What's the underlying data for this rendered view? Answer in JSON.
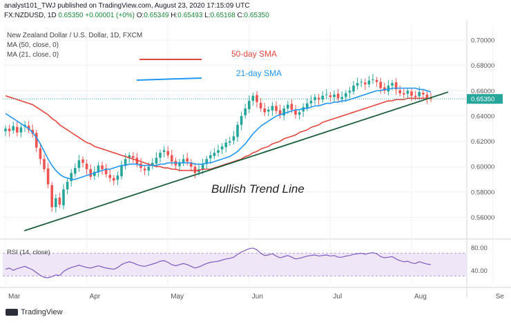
{
  "header": {
    "published": "analyst101_TWJ published on TradingView.com, August 23, 2020 17:15:09 UTC",
    "symbol": "FX:NZDUSD, 1D",
    "last_close": "0.65350",
    "change": "+0.00001 (+0%)",
    "o_label": "O:",
    "o_val": "0.65349",
    "h_label": "H:",
    "h_val": "0.65493",
    "l_label": "L:",
    "l_val": "0.65168",
    "c_label": "C:",
    "c_val": "0.65350"
  },
  "legend": {
    "title": "New Zealand Dollar / U.S. Dollar, 1D, FXCM",
    "ma50": "MA (50, close, 0)",
    "ma21": "MA (21, close, 0)"
  },
  "annotations": {
    "sma50_label": "50-day SMA",
    "sma21_label": "21-day SMA",
    "trend_label": "Bullish Trend Line",
    "price_tag": "0.65350"
  },
  "footer": {
    "brand": "TradingView"
  },
  "colors": {
    "up": "#26a69a",
    "down": "#ef5350",
    "sma50": "#e5453d",
    "sma21": "#2196f3",
    "trend": "#1b5e3a",
    "rsi": "#7e57c2",
    "rsi_band": "#efe7f7",
    "grid": "#eef0f3"
  },
  "chart_data": [
    {
      "type": "candlestick",
      "title": "New Zealand Dollar / U.S. Dollar, 1D, FXCM",
      "ylim": [
        0.545,
        0.712
      ],
      "y_ticks": [
        "0.70000",
        "0.68000",
        "0.66000",
        "0.64000",
        "0.62000",
        "0.60000",
        "0.58000",
        "0.56000"
      ],
      "y_tick_values": [
        0.7,
        0.68,
        0.66,
        0.64,
        0.62,
        0.6,
        0.58,
        0.56
      ],
      "x_ticks": [
        "Mar",
        "Apr",
        "May",
        "Jun",
        "Jul",
        "Aug",
        "Se"
      ],
      "x_tick_index": [
        0,
        21,
        42,
        63,
        84,
        105,
        126
      ],
      "last_price": 0.6535,
      "close": [
        0.63,
        0.628,
        0.632,
        0.627,
        0.631,
        0.633,
        0.629,
        0.626,
        0.615,
        0.606,
        0.598,
        0.586,
        0.568,
        0.575,
        0.57,
        0.582,
        0.588,
        0.595,
        0.599,
        0.605,
        0.603,
        0.598,
        0.592,
        0.596,
        0.601,
        0.598,
        0.594,
        0.591,
        0.589,
        0.593,
        0.601,
        0.606,
        0.609,
        0.607,
        0.602,
        0.599,
        0.597,
        0.6,
        0.603,
        0.607,
        0.611,
        0.613,
        0.609,
        0.604,
        0.601,
        0.603,
        0.606,
        0.604,
        0.6,
        0.595,
        0.598,
        0.602,
        0.606,
        0.609,
        0.611,
        0.613,
        0.616,
        0.619,
        0.62,
        0.624,
        0.633,
        0.64,
        0.646,
        0.652,
        0.656,
        0.651,
        0.646,
        0.643,
        0.645,
        0.648,
        0.644,
        0.641,
        0.646,
        0.649,
        0.645,
        0.641,
        0.643,
        0.647,
        0.65,
        0.652,
        0.655,
        0.653,
        0.656,
        0.657,
        0.655,
        0.657,
        0.654,
        0.655,
        0.658,
        0.66,
        0.664,
        0.666,
        0.667,
        0.665,
        0.668,
        0.669,
        0.667,
        0.662,
        0.66,
        0.664,
        0.666,
        0.661,
        0.658,
        0.657,
        0.66,
        0.656,
        0.655,
        0.659,
        0.657,
        0.654,
        0.6535
      ],
      "sma21": [
        0.642,
        0.64,
        0.638,
        0.636,
        0.634,
        0.632,
        0.63,
        0.627,
        0.623,
        0.618,
        0.612,
        0.606,
        0.601,
        0.597,
        0.594,
        0.592,
        0.591,
        0.59,
        0.59,
        0.591,
        0.592,
        0.593,
        0.594,
        0.595,
        0.596,
        0.597,
        0.598,
        0.598,
        0.599,
        0.6,
        0.601,
        0.601,
        0.602,
        0.602,
        0.602,
        0.601,
        0.601,
        0.601,
        0.601,
        0.601,
        0.602,
        0.602,
        0.603,
        0.603,
        0.603,
        0.603,
        0.603,
        0.603,
        0.603,
        0.602,
        0.602,
        0.602,
        0.603,
        0.603,
        0.604,
        0.605,
        0.606,
        0.607,
        0.608,
        0.61,
        0.612,
        0.615,
        0.618,
        0.622,
        0.626,
        0.629,
        0.632,
        0.634,
        0.636,
        0.638,
        0.64,
        0.641,
        0.642,
        0.643,
        0.644,
        0.645,
        0.645,
        0.646,
        0.646,
        0.647,
        0.648,
        0.648,
        0.649,
        0.65,
        0.65,
        0.651,
        0.651,
        0.652,
        0.652,
        0.653,
        0.654,
        0.655,
        0.656,
        0.657,
        0.658,
        0.659,
        0.66,
        0.66,
        0.661,
        0.661,
        0.662,
        0.662,
        0.662,
        0.662,
        0.662,
        0.662,
        0.662,
        0.661,
        0.661,
        0.66,
        0.659
      ],
      "sma50": [
        0.656,
        0.655,
        0.654,
        0.653,
        0.652,
        0.651,
        0.65,
        0.649,
        0.647,
        0.645,
        0.643,
        0.641,
        0.638,
        0.636,
        0.633,
        0.631,
        0.629,
        0.627,
        0.625,
        0.623,
        0.621,
        0.619,
        0.618,
        0.616,
        0.615,
        0.614,
        0.613,
        0.612,
        0.611,
        0.61,
        0.609,
        0.608,
        0.607,
        0.606,
        0.605,
        0.604,
        0.603,
        0.602,
        0.601,
        0.6,
        0.6,
        0.599,
        0.599,
        0.598,
        0.598,
        0.597,
        0.597,
        0.597,
        0.597,
        0.597,
        0.597,
        0.598,
        0.598,
        0.598,
        0.599,
        0.6,
        0.601,
        0.602,
        0.603,
        0.604,
        0.605,
        0.606,
        0.608,
        0.609,
        0.611,
        0.612,
        0.614,
        0.615,
        0.616,
        0.618,
        0.619,
        0.62,
        0.622,
        0.623,
        0.624,
        0.625,
        0.627,
        0.628,
        0.629,
        0.631,
        0.632,
        0.633,
        0.635,
        0.636,
        0.637,
        0.638,
        0.639,
        0.64,
        0.641,
        0.642,
        0.643,
        0.644,
        0.645,
        0.646,
        0.647,
        0.648,
        0.649,
        0.65,
        0.651,
        0.652,
        0.652,
        0.653,
        0.653,
        0.653,
        0.654,
        0.654,
        0.654,
        0.654,
        0.654,
        0.654,
        0.654
      ],
      "trendline": [
        {
          "i": 12,
          "price": 0.5565
        },
        {
          "i": 110,
          "price": 0.6545
        }
      ]
    },
    {
      "type": "line",
      "title": "RSI (14, close)",
      "ylim": [
        15,
        90
      ],
      "y_ticks": [
        "80.00",
        "40.00"
      ],
      "y_tick_values": [
        80,
        40
      ],
      "band": [
        30,
        70
      ],
      "values": [
        42,
        44,
        40,
        43,
        45,
        47,
        44,
        41,
        36,
        31,
        28,
        27,
        29,
        32,
        31,
        38,
        42,
        45,
        47,
        49,
        47,
        45,
        44,
        46,
        48,
        46,
        44,
        43,
        42,
        45,
        50,
        53,
        55,
        53,
        50,
        48,
        47,
        49,
        51,
        53,
        56,
        57,
        54,
        50,
        48,
        50,
        52,
        50,
        47,
        44,
        46,
        49,
        52,
        54,
        55,
        56,
        58,
        60,
        61,
        63,
        68,
        72,
        75,
        78,
        79,
        76,
        70,
        66,
        67,
        69,
        65,
        62,
        64,
        66,
        63,
        60,
        61,
        63,
        65,
        66,
        67,
        65,
        66,
        67,
        65,
        66,
        63,
        63,
        65,
        66,
        68,
        69,
        70,
        68,
        70,
        71,
        69,
        64,
        62,
        63,
        64,
        60,
        57,
        55,
        56,
        53,
        52,
        55,
        53,
        51,
        50
      ]
    }
  ]
}
